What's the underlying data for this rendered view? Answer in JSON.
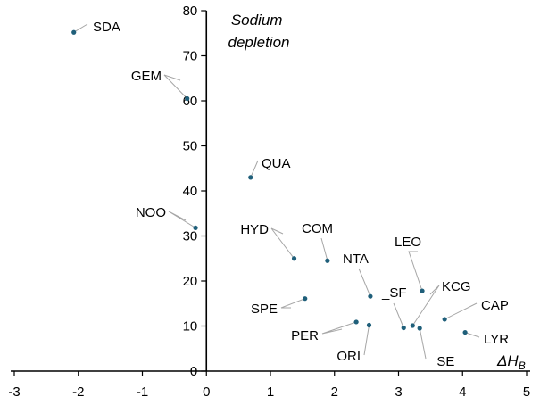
{
  "chart_data": {
    "type": "scatter",
    "title": "",
    "ylabel": "Sodium depletion",
    "ylabel_lines": [
      "Sodium",
      "depletion"
    ],
    "xlabel": "ΔH",
    "xlabel_sub": "B",
    "xlim": [
      -3,
      5
    ],
    "ylim": [
      0,
      80
    ],
    "xticks": [
      -3,
      -2,
      -1,
      0,
      1,
      2,
      3,
      4,
      5
    ],
    "yticks": [
      0,
      10,
      20,
      30,
      40,
      50,
      60,
      70,
      80
    ],
    "grid": false,
    "legend": "none",
    "marker_color": "#1f5f7a",
    "points": [
      {
        "label": "SDA",
        "x": -2.07,
        "y": 75.2
      },
      {
        "label": "GEM",
        "x": -0.3,
        "y": 60.5
      },
      {
        "label": "QUA",
        "x": 0.69,
        "y": 43.0
      },
      {
        "label": "NOO",
        "x": -0.17,
        "y": 31.8
      },
      {
        "label": "HYD",
        "x": 1.37,
        "y": 25.0
      },
      {
        "label": "COM",
        "x": 1.89,
        "y": 24.5
      },
      {
        "label": "NTA",
        "x": 2.56,
        "y": 16.6
      },
      {
        "label": "LEO",
        "x": 3.37,
        "y": 17.8
      },
      {
        "label": "_SF",
        "x": 3.08,
        "y": 9.6
      },
      {
        "label": "KCG",
        "x": 3.22,
        "y": 10.1
      },
      {
        "label": "_SE",
        "x": 3.33,
        "y": 9.5
      },
      {
        "label": "CAP",
        "x": 3.72,
        "y": 11.5
      },
      {
        "label": "LYR",
        "x": 4.04,
        "y": 8.6
      },
      {
        "label": "SPE",
        "x": 1.54,
        "y": 16.1
      },
      {
        "label": "PER",
        "x": 2.34,
        "y": 10.9
      },
      {
        "label": "ORI",
        "x": 2.54,
        "y": 10.2
      }
    ]
  }
}
